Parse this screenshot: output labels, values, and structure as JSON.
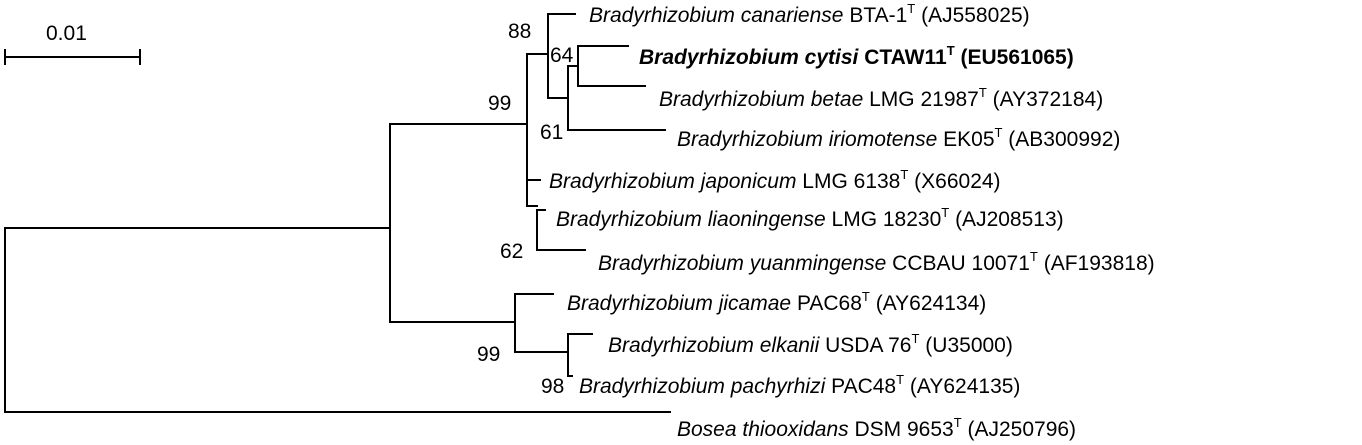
{
  "scale_bar": {
    "label": "0.01"
  },
  "taxa": [
    {
      "genus_species": "Bradyrhizobium canariense",
      "strain": "BTA-1",
      "type_mark": "T",
      "accession": "(AJ558025)",
      "bold": false
    },
    {
      "genus_species": "Bradyrhizobium cytisi",
      "strain": "CTAW11",
      "type_mark": "T",
      "accession": "(EU561065)",
      "bold": true
    },
    {
      "genus_species": "Bradyrhizobium betae",
      "strain": "LMG 21987",
      "type_mark": "T",
      "accession": "(AY372184)",
      "bold": false
    },
    {
      "genus_species": "Bradyrhizobium iriomotense",
      "strain": "EK05",
      "type_mark": "T",
      "accession": "(AB300992)",
      "bold": false
    },
    {
      "genus_species": "Bradyrhizobium japonicum",
      "strain": "LMG 6138",
      "type_mark": "T",
      "accession": "(X66024)",
      "bold": false
    },
    {
      "genus_species": "Bradyrhizobium liaoningense",
      "strain": "LMG 18230",
      "type_mark": "T",
      "accession": "(AJ208513)",
      "bold": false
    },
    {
      "genus_species": "Bradyrhizobium yuanmingense",
      "strain": "CCBAU 10071",
      "type_mark": "T",
      "accession": "(AF193818)",
      "bold": false
    },
    {
      "genus_species": "Bradyrhizobium jicamae",
      "strain": "PAC68",
      "type_mark": "T",
      "accession": "(AY624134)",
      "bold": false
    },
    {
      "genus_species": "Bradyrhizobium elkanii",
      "strain": "USDA 76",
      "type_mark": "T",
      "accession": "(U35000)",
      "bold": false
    },
    {
      "genus_species": "Bradyrhizobium pachyrhizi",
      "strain": "PAC48",
      "type_mark": "T",
      "accession": "(AY624135)",
      "bold": false
    },
    {
      "genus_species": "Bosea thiooxidans",
      "strain": "DSM 9653",
      "type_mark": "T",
      "accession": "(AJ250796)",
      "bold": false
    }
  ],
  "bootstrap_values": [
    "88",
    "64",
    "99",
    "61",
    "62",
    "99",
    "98"
  ]
}
